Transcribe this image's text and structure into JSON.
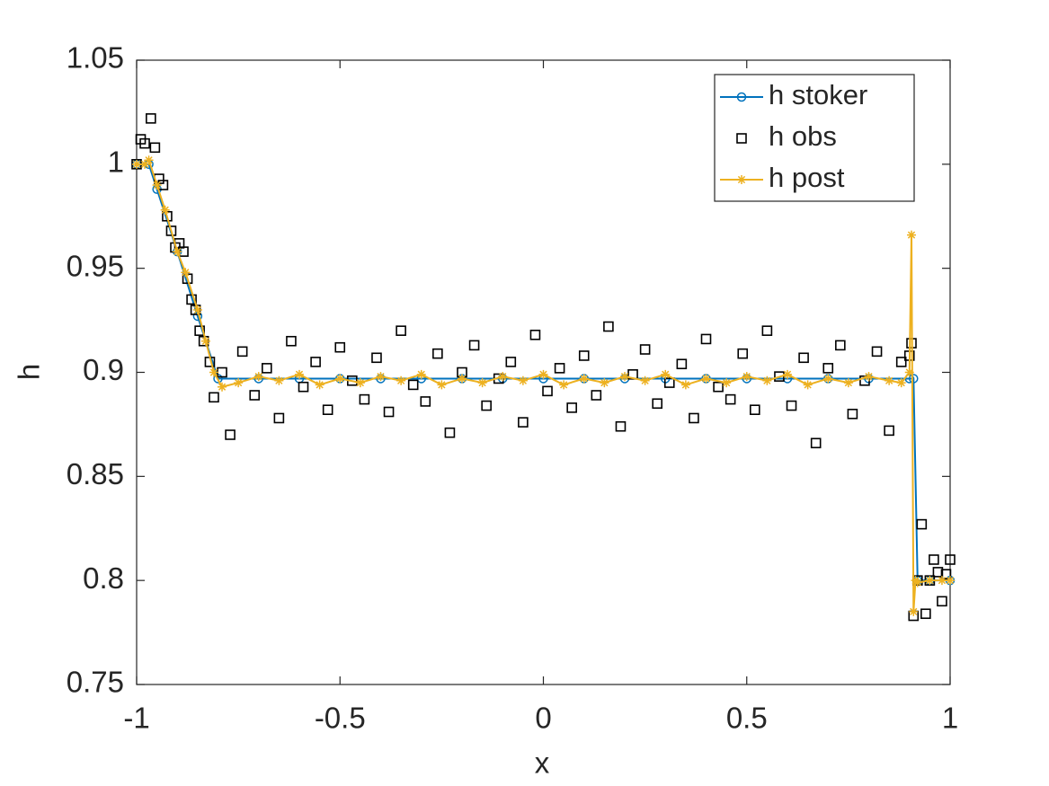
{
  "chart_data": {
    "type": "line",
    "xlabel": "x",
    "ylabel": "h",
    "xlim": [
      -1,
      1
    ],
    "ylim": [
      0.75,
      1.05
    ],
    "xticks": [
      -1,
      -0.5,
      0,
      0.5,
      1
    ],
    "yticks": [
      0.75,
      0.8,
      0.85,
      0.9,
      0.95,
      1,
      1.05
    ],
    "grid": false,
    "legend": "northeast",
    "series": [
      {
        "name": "h stoker",
        "color": "#0072bd",
        "marker": "o",
        "line": true,
        "x": [
          -1,
          -0.97,
          -0.95,
          -0.9,
          -0.85,
          -0.8,
          -0.7,
          -0.6,
          -0.5,
          -0.4,
          -0.3,
          -0.2,
          -0.1,
          0,
          0.1,
          0.2,
          0.3,
          0.4,
          0.5,
          0.6,
          0.7,
          0.8,
          0.9,
          0.91,
          0.92,
          0.95,
          1
        ],
        "values": [
          1,
          1,
          0.988,
          0.958,
          0.927,
          0.897,
          0.897,
          0.897,
          0.897,
          0.897,
          0.897,
          0.897,
          0.897,
          0.897,
          0.897,
          0.897,
          0.897,
          0.897,
          0.897,
          0.897,
          0.897,
          0.897,
          0.897,
          0.897,
          0.8,
          0.8,
          0.8
        ]
      },
      {
        "name": "h obs",
        "color": "#000000",
        "marker": "s",
        "line": false,
        "x": [
          -1,
          -0.99,
          -0.98,
          -0.965,
          -0.955,
          -0.945,
          -0.935,
          -0.925,
          -0.915,
          -0.905,
          -0.895,
          -0.885,
          -0.875,
          -0.865,
          -0.855,
          -0.845,
          -0.835,
          -0.82,
          -0.81,
          -0.79,
          -0.77,
          -0.74,
          -0.71,
          -0.68,
          -0.65,
          -0.62,
          -0.59,
          -0.56,
          -0.53,
          -0.5,
          -0.47,
          -0.44,
          -0.41,
          -0.38,
          -0.35,
          -0.32,
          -0.29,
          -0.26,
          -0.23,
          -0.2,
          -0.17,
          -0.14,
          -0.11,
          -0.08,
          -0.05,
          -0.02,
          0.01,
          0.04,
          0.07,
          0.1,
          0.13,
          0.16,
          0.19,
          0.22,
          0.25,
          0.28,
          0.31,
          0.34,
          0.37,
          0.4,
          0.43,
          0.46,
          0.49,
          0.52,
          0.55,
          0.58,
          0.61,
          0.64,
          0.67,
          0.7,
          0.73,
          0.76,
          0.79,
          0.82,
          0.85,
          0.88,
          0.9,
          0.905,
          0.91,
          0.92,
          0.93,
          0.94,
          0.95,
          0.96,
          0.97,
          0.98,
          0.99,
          1
        ],
        "values": [
          1,
          1.012,
          1.01,
          1.022,
          1.008,
          0.993,
          0.99,
          0.975,
          0.968,
          0.96,
          0.962,
          0.958,
          0.945,
          0.935,
          0.93,
          0.92,
          0.915,
          0.905,
          0.888,
          0.9,
          0.87,
          0.91,
          0.889,
          0.902,
          0.878,
          0.915,
          0.893,
          0.905,
          0.882,
          0.912,
          0.896,
          0.887,
          0.907,
          0.881,
          0.92,
          0.894,
          0.886,
          0.909,
          0.871,
          0.9,
          0.913,
          0.884,
          0.897,
          0.905,
          0.876,
          0.918,
          0.891,
          0.902,
          0.883,
          0.908,
          0.889,
          0.922,
          0.874,
          0.899,
          0.911,
          0.885,
          0.895,
          0.904,
          0.878,
          0.916,
          0.893,
          0.887,
          0.909,
          0.882,
          0.92,
          0.898,
          0.884,
          0.907,
          0.866,
          0.902,
          0.913,
          0.88,
          0.896,
          0.91,
          0.872,
          0.905,
          0.908,
          0.914,
          0.783,
          0.8,
          0.827,
          0.784,
          0.8,
          0.81,
          0.804,
          0.79,
          0.803,
          0.81
        ]
      },
      {
        "name": "h post",
        "color": "#edb120",
        "marker": "*",
        "line": true,
        "x": [
          -1,
          -0.98,
          -0.97,
          -0.95,
          -0.93,
          -0.9,
          -0.88,
          -0.85,
          -0.83,
          -0.81,
          -0.79,
          -0.75,
          -0.7,
          -0.65,
          -0.6,
          -0.55,
          -0.5,
          -0.45,
          -0.4,
          -0.35,
          -0.3,
          -0.25,
          -0.2,
          -0.15,
          -0.1,
          -0.05,
          0,
          0.05,
          0.1,
          0.15,
          0.2,
          0.25,
          0.3,
          0.35,
          0.4,
          0.45,
          0.5,
          0.55,
          0.6,
          0.65,
          0.7,
          0.75,
          0.8,
          0.85,
          0.88,
          0.9,
          0.905,
          0.91,
          0.915,
          0.92,
          0.95,
          0.98,
          1
        ],
        "values": [
          1,
          1,
          1.002,
          0.99,
          0.978,
          0.958,
          0.948,
          0.93,
          0.915,
          0.9,
          0.893,
          0.895,
          0.898,
          0.896,
          0.899,
          0.894,
          0.897,
          0.895,
          0.898,
          0.896,
          0.899,
          0.894,
          0.897,
          0.895,
          0.898,
          0.896,
          0.899,
          0.894,
          0.897,
          0.895,
          0.898,
          0.896,
          0.899,
          0.894,
          0.897,
          0.895,
          0.898,
          0.896,
          0.899,
          0.894,
          0.897,
          0.895,
          0.898,
          0.896,
          0.895,
          0.9,
          0.966,
          0.785,
          0.8,
          0.799,
          0.8,
          0.8,
          0.8
        ]
      }
    ]
  }
}
